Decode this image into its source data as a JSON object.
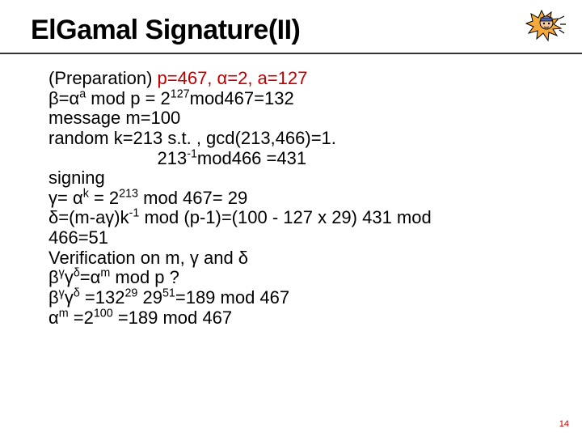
{
  "title": {
    "text": "ElGamal Signature(II)",
    "fontsize": 34
  },
  "body_fontsize": 22,
  "slide_number": "14",
  "bullet_glyph": "",
  "lines": [
    {
      "bulleted": true,
      "html": "(Preparation) <span class='red'>p=467, α=2, a=127</span>"
    },
    {
      "bulleted": false,
      "indent": true,
      "html": "β=α<sup>a</sup> mod p = 2<sup>127</sup>mod467=132"
    },
    {
      "bulleted": false,
      "indent": true,
      "html": "message m=100"
    },
    {
      "bulleted": false,
      "indent": true,
      "html": "random k=213  s.t. , gcd(213,466)=1."
    },
    {
      "bulleted": false,
      "indent": true,
      "html": "&nbsp;&nbsp;&nbsp;&nbsp;&nbsp;&nbsp;&nbsp;&nbsp;&nbsp;&nbsp;&nbsp;&nbsp;&nbsp;&nbsp;&nbsp;&nbsp;&nbsp;&nbsp;&nbsp;&nbsp;&nbsp;&nbsp;213<sup>-1</sup>mod466 =431"
    },
    {
      "bulleted": true,
      "html": "signing"
    },
    {
      "bulleted": false,
      "indent": true,
      "html": "γ= α<sup>k</sup> = 2<sup>213</sup> mod 467= 29"
    },
    {
      "bulleted": false,
      "indent": true,
      "html": "δ=(m-aγ)k<sup>-1</sup> mod (p-1)=(100 - 127 x 29) 431 mod"
    },
    {
      "bulleted": false,
      "indent": true,
      "html": "466=51"
    },
    {
      "bulleted": true,
      "html": "Verification on m, γ and δ"
    },
    {
      "bulleted": false,
      "indent": false,
      "html": "β<sup>γ</sup>γ<sup>δ</sup>=α<sup>m</sup> mod p ?"
    },
    {
      "bulleted": false,
      "indent": false,
      "html": "β<sup>γ</sup>γ<sup>δ</sup> =132<sup>29</sup> 29<sup>51</sup>=189 mod 467"
    },
    {
      "bulleted": false,
      "indent": false,
      "html": "α<sup>m</sup> =2<sup>100</sup> =189 mod 467"
    }
  ],
  "colors": {
    "red": "#c00000",
    "text": "#000000",
    "rule": "#333333",
    "bg": "#ffffff"
  },
  "icon": {
    "burst_color": "#f4a93a",
    "outline": "#000000",
    "face": {
      "skin": "#f2c99a",
      "band": "#4a63b5"
    }
  }
}
